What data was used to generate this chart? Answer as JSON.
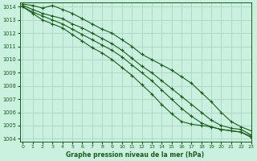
{
  "title": "Graphe pression niveau de la mer (hPa)",
  "bg_color": "#caf0e0",
  "grid_color": "#b0d8c8",
  "line_color": "#1a5c1a",
  "xlim": [
    -0.3,
    23
  ],
  "ylim": [
    1003.8,
    1014.3
  ],
  "yticks": [
    1004,
    1005,
    1006,
    1007,
    1008,
    1009,
    1010,
    1011,
    1012,
    1013,
    1014
  ],
  "xticks": [
    0,
    1,
    2,
    3,
    4,
    5,
    6,
    7,
    8,
    9,
    10,
    11,
    12,
    13,
    14,
    15,
    16,
    17,
    18,
    19,
    20,
    21,
    22,
    23
  ],
  "lines": [
    [
      1014.2,
      1014.1,
      1013.9,
      1014.1,
      1013.8,
      1013.5,
      1013.1,
      1012.7,
      1012.3,
      1012.0,
      1011.5,
      1011.0,
      1010.4,
      1010.0,
      1009.6,
      1009.2,
      1008.7,
      1008.2,
      1007.5,
      1006.8,
      1006.0,
      1005.3,
      1004.9,
      1004.6
    ],
    [
      1014.1,
      1013.8,
      1013.5,
      1013.3,
      1013.1,
      1012.7,
      1012.4,
      1012.0,
      1011.6,
      1011.2,
      1010.7,
      1010.1,
      1009.5,
      1009.0,
      1008.4,
      1007.8,
      1007.2,
      1006.6,
      1006.0,
      1005.4,
      1005.0,
      1004.8,
      1004.7,
      1004.3
    ],
    [
      1014.0,
      1013.6,
      1013.3,
      1013.0,
      1012.7,
      1012.3,
      1011.9,
      1011.5,
      1011.1,
      1010.7,
      1010.2,
      1009.6,
      1009.0,
      1008.4,
      1007.7,
      1007.0,
      1006.3,
      1005.7,
      1005.2,
      1004.9,
      1004.7,
      1004.6,
      1004.5,
      1004.2
    ],
    [
      1014.0,
      1013.5,
      1013.0,
      1012.7,
      1012.4,
      1011.9,
      1011.4,
      1010.9,
      1010.5,
      1010.0,
      1009.4,
      1008.8,
      1008.1,
      1007.4,
      1006.6,
      1005.9,
      1005.3,
      1005.1,
      1005.0,
      1004.9,
      1004.7,
      1004.6,
      1004.5,
      1004.1
    ]
  ]
}
